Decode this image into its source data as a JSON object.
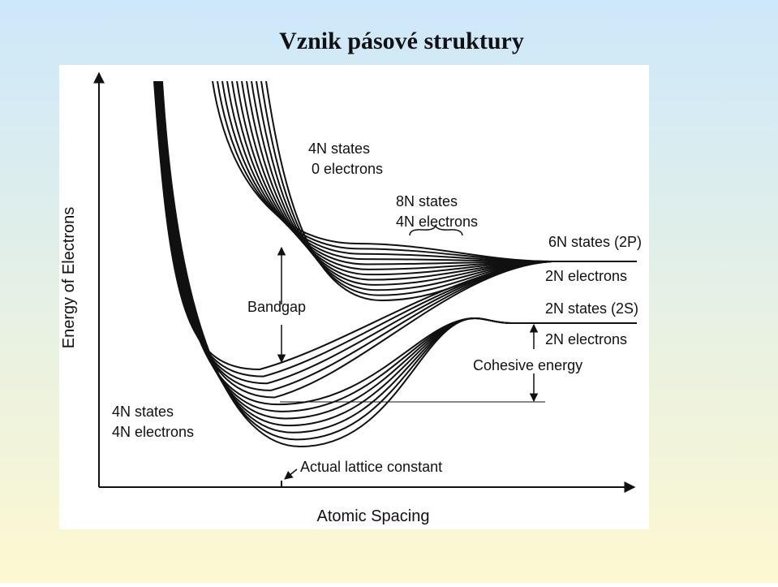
{
  "title": "Vznik pásové struktury",
  "figure": {
    "y_axis_label": "Energy of Electrons",
    "x_axis_label": "Atomic Spacing",
    "upper_band": {
      "states": "4N states",
      "electrons": "0 electrons"
    },
    "hybrid_band": {
      "states": "8N states",
      "electrons": "4N electrons"
    },
    "level_2p": {
      "states": "6N states (2P)",
      "electrons": "2N electrons"
    },
    "level_2s": {
      "states": "2N states (2S)",
      "electrons": "2N electrons"
    },
    "bandgap": "Bandgap",
    "cohesive_energy": "Cohesive energy",
    "lower_band": {
      "states": "4N states",
      "electrons": "4N electrons"
    },
    "lattice_constant": "Actual lattice constant"
  }
}
